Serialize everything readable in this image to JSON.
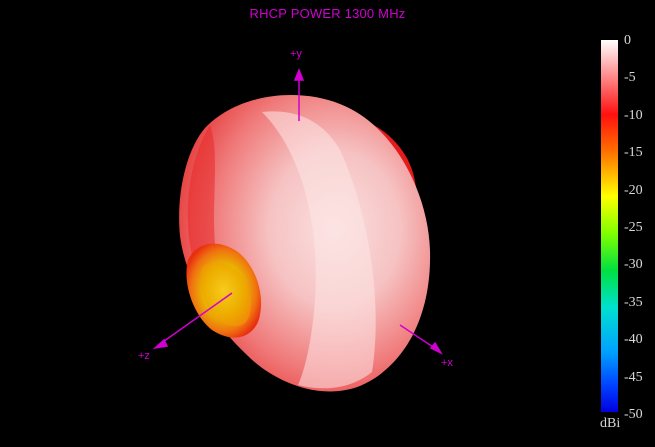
{
  "chart_data": {
    "type": "heatmap",
    "title": "RHCP POWER 1300  MHz",
    "axes": [
      "+y",
      "+z",
      "+x"
    ],
    "colorbar": {
      "ticks": [
        "0",
        "-5",
        "-10",
        "-15",
        "-20",
        "-25",
        "-30",
        "-35",
        "-40",
        "-45",
        "-50"
      ],
      "unit": "dBi",
      "range": [
        -50,
        0
      ],
      "colors": [
        "#ffffff",
        "#ff8888",
        "#ff1010",
        "#ff7000",
        "#ffff00",
        "#80ff00",
        "#00e040",
        "#00e0d0",
        "#00a0ff",
        "#0040ff",
        "#0000e0"
      ]
    }
  }
}
